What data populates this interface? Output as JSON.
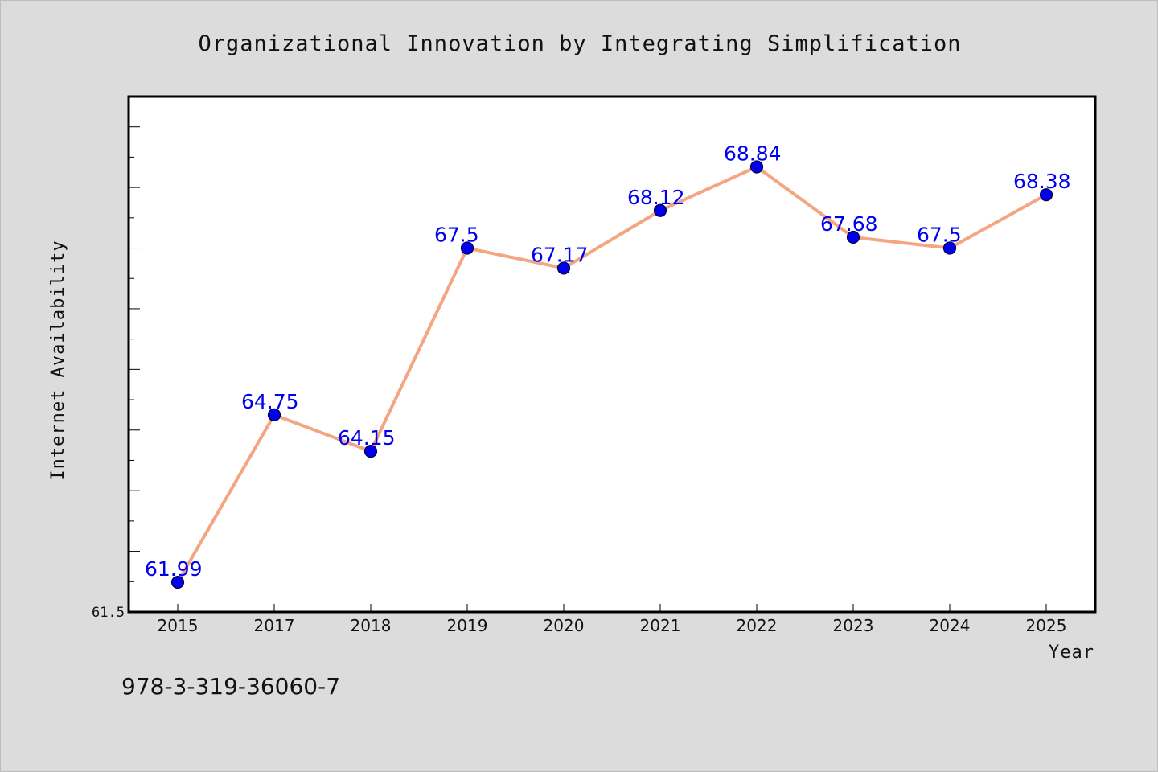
{
  "chart_data": {
    "type": "line",
    "title": "Organizational Innovation by Integrating Simplification",
    "xlabel": "Year",
    "ylabel": "Internet Availability",
    "categories": [
      "2015",
      "2017",
      "2018",
      "2019",
      "2020",
      "2021",
      "2022",
      "2023",
      "2024",
      "2025"
    ],
    "series": [
      {
        "values": [
          61.99,
          64.75,
          64.15,
          67.5,
          67.17,
          68.12,
          68.84,
          67.68,
          67.5,
          68.38
        ],
        "data_labels": [
          "61.99",
          "64.75",
          "64.15",
          "67.5",
          "67.17",
          "68.12",
          "68.84",
          "67.68",
          "67.5",
          "68.38"
        ]
      }
    ],
    "ylim": [
      61.5,
      70.0
    ],
    "ytick_labels": [
      "61.5"
    ],
    "grid": false,
    "legend": false,
    "colors": {
      "line": "#f4a582",
      "marker": "#0000ee",
      "marker_edge": "#000033",
      "label": "#0000ee",
      "plot_background": "#ffffff",
      "page_background": "#dcdcdc"
    }
  },
  "footer": {
    "text": "978-3-319-36060-7"
  }
}
